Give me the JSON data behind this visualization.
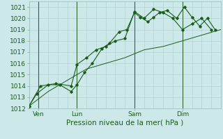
{
  "xlabel": "Pression niveau de la mer( hPa )",
  "bg_color": "#cce8e8",
  "grid_color_major": "#aacccc",
  "grid_color_minor": "#bbdddd",
  "line_color": "#1a5c1a",
  "day_line_color": "#336633",
  "ylim": [
    1012,
    1021.5
  ],
  "xlim": [
    0,
    100
  ],
  "ytick_positions": [
    1012,
    1013,
    1014,
    1015,
    1016,
    1017,
    1018,
    1019,
    1020,
    1021
  ],
  "xtick_positions": [
    5,
    25,
    55,
    80
  ],
  "xtick_labels": [
    "Ven",
    "Lun",
    "Sam",
    "Dim"
  ],
  "day_vlines": [
    5,
    25,
    55,
    80
  ],
  "series1_x": [
    0,
    4,
    10,
    16,
    22,
    25,
    29,
    33,
    38,
    42,
    47,
    51,
    55,
    58,
    62,
    65,
    68,
    72,
    77,
    81,
    85,
    89,
    93,
    97
  ],
  "series1_y": [
    1012.2,
    1013.3,
    1014.1,
    1014.1,
    1013.5,
    1014.1,
    1015.2,
    1016.0,
    1017.3,
    1017.8,
    1018.8,
    1019.0,
    1020.5,
    1020.1,
    1019.7,
    1020.1,
    1020.5,
    1020.7,
    1020.0,
    1021.0,
    1020.1,
    1019.3,
    1020.0,
    1019.0
  ],
  "series2_x": [
    0,
    6,
    14,
    22,
    25,
    30,
    35,
    40,
    45,
    50,
    55,
    60,
    65,
    70,
    75,
    80,
    85,
    90,
    95
  ],
  "series2_y": [
    1012.2,
    1014.0,
    1014.2,
    1014.0,
    1015.9,
    1016.5,
    1017.2,
    1017.5,
    1018.0,
    1018.2,
    1020.6,
    1020.0,
    1020.8,
    1020.5,
    1020.0,
    1019.0,
    1019.5,
    1020.0,
    1019.0
  ],
  "series3_x": [
    0,
    10,
    20,
    30,
    40,
    50,
    60,
    70,
    80,
    90,
    100
  ],
  "series3_y": [
    1012.2,
    1013.5,
    1014.5,
    1015.5,
    1016.0,
    1016.5,
    1017.2,
    1017.5,
    1018.0,
    1018.5,
    1019.0
  ],
  "label_fontsize": 7.5,
  "tick_fontsize": 6.5
}
